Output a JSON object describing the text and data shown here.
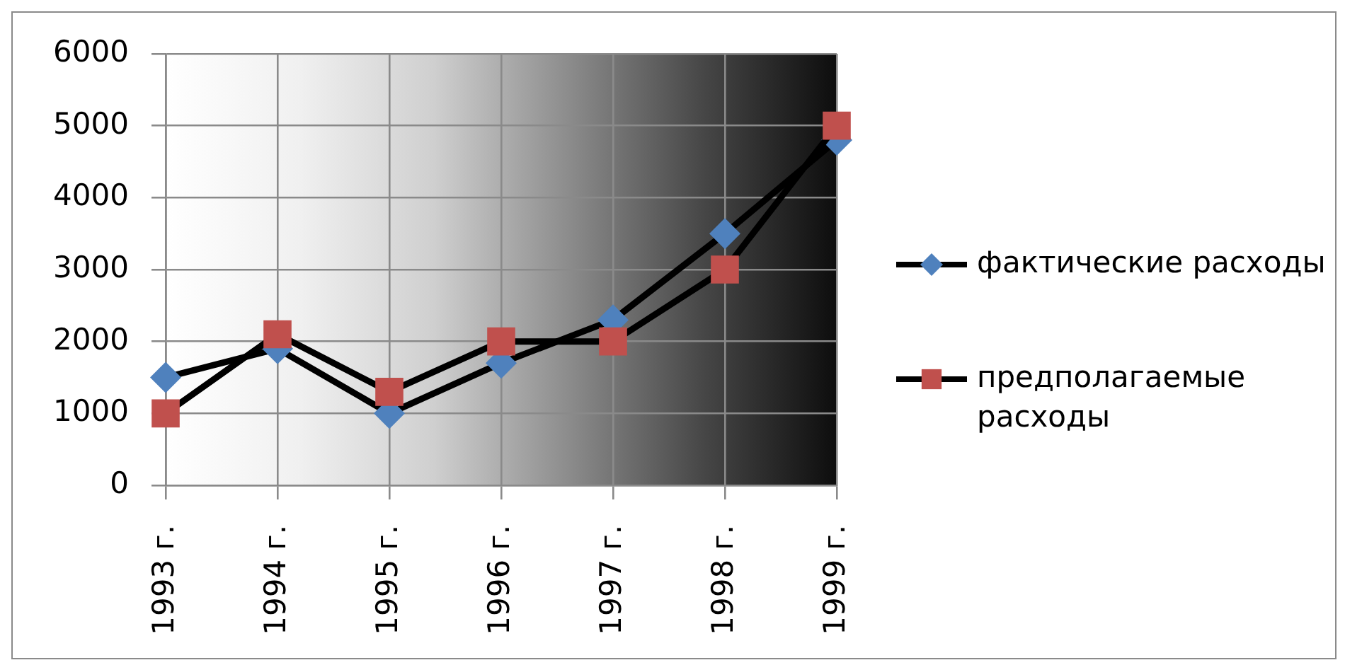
{
  "chart_data": {
    "type": "line",
    "categories": [
      "1993 г.",
      "1994 г.",
      "1995 г.",
      "1996 г.",
      "1997 г.",
      "1998 г.",
      "1999 г."
    ],
    "series": [
      {
        "name": "фактические расходы",
        "color": "#4f81bd",
        "marker": "diamond",
        "values": [
          1500,
          1900,
          1000,
          1700,
          2300,
          3500,
          4800
        ]
      },
      {
        "name": "предполагаемые расходы",
        "color": "#c0504d",
        "marker": "square",
        "values": [
          1000,
          2100,
          1300,
          2000,
          2000,
          3000,
          5000
        ]
      }
    ],
    "ylim": [
      0,
      6000
    ],
    "yticks": [
      0,
      1000,
      2000,
      3000,
      4000,
      5000,
      6000
    ],
    "grid": true,
    "legend": "right"
  }
}
